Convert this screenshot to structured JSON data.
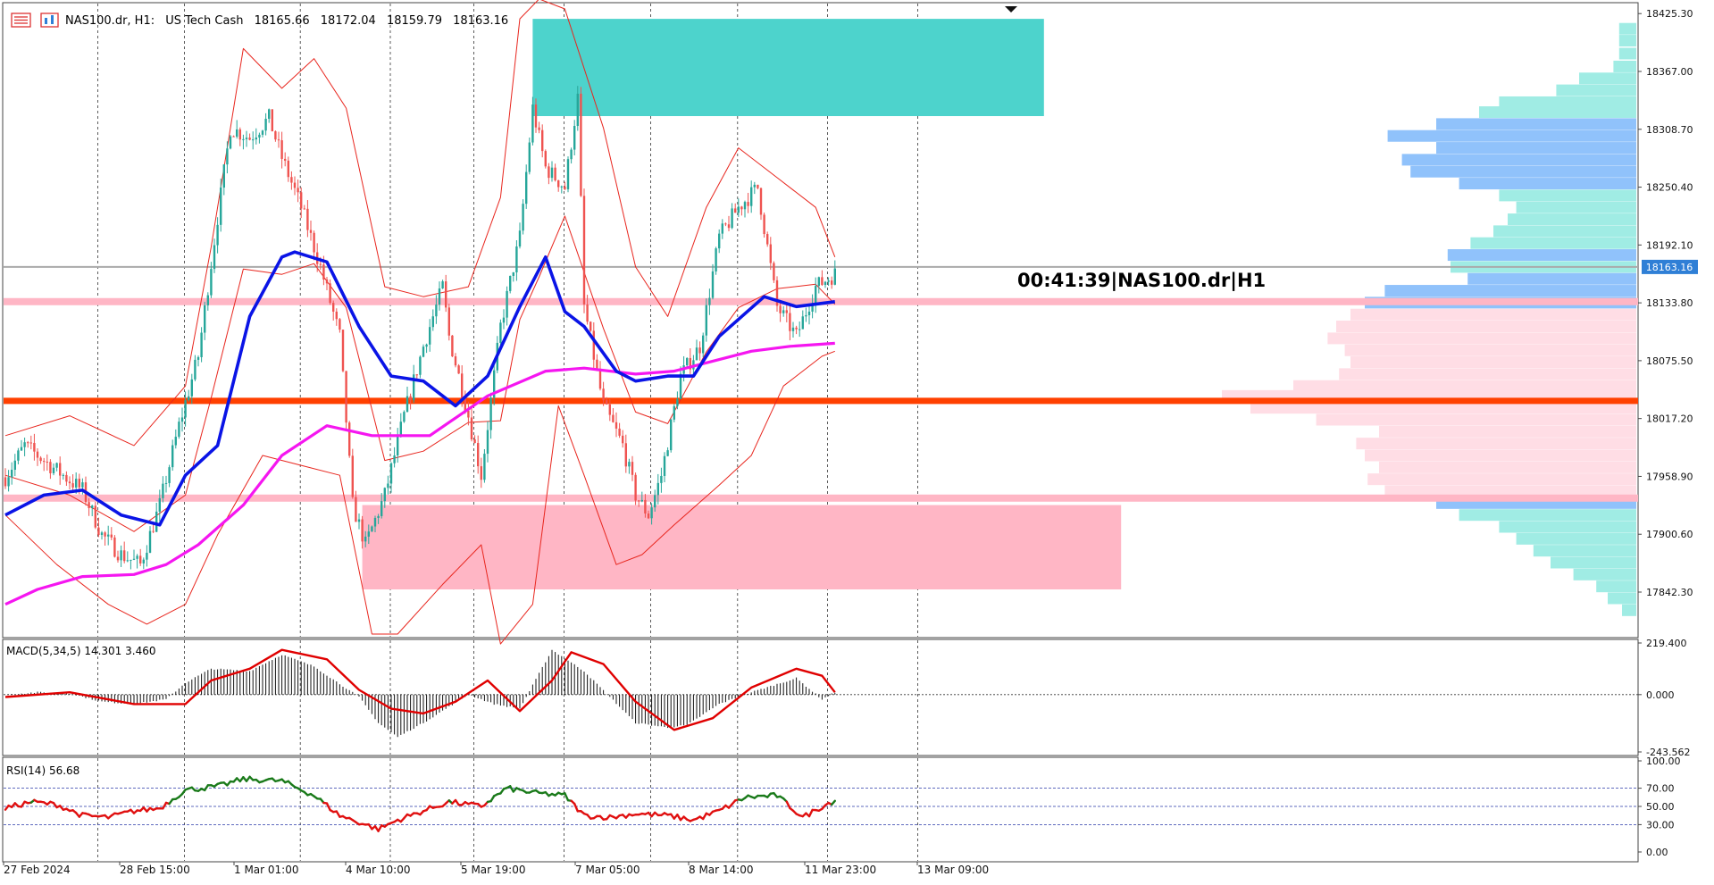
{
  "header": {
    "symbol_timeframe": "NAS100.dr, H1:",
    "description": "US Tech Cash",
    "open": "18165.66",
    "high": "18172.04",
    "low": "18159.79",
    "close": "18163.16"
  },
  "countdown_label": "00:41:39|NAS100.dr|H1",
  "current_price_tag": "18163.16",
  "colors": {
    "bull_candle": "#26a69a",
    "bear_candle": "#ef5350",
    "blue_ma": "#0a14e6",
    "magenta_ma": "#f516f0",
    "bollinger": "#e8261e",
    "support_line": "#ff4000",
    "zone_teal": "#4dd3cc",
    "zone_pink": "#ffb6c5",
    "profile_teal": "#a0ece4",
    "profile_blue": "#90c2fb",
    "profile_pink": "#ffdde5",
    "rsi_up": "#1a7a1a",
    "rsi_down": "#e01010"
  },
  "chart_data": [
    {
      "type": "candlestick",
      "title": "",
      "ylim": [
        17800,
        18430
      ],
      "y_ticks": [
        "18425.30",
        "18367.00",
        "18308.70",
        "18250.40",
        "18192.10",
        "18133.80",
        "18075.50",
        "18017.20",
        "17958.90",
        "17900.60",
        "17842.30"
      ],
      "x_labels": [
        "27 Feb 2024",
        "28 Feb 15:00",
        "1 Mar 01:00",
        "4 Mar 10:00",
        "5 Mar 19:00",
        "7 Mar 05:00",
        "8 Mar 14:00",
        "11 Mar 23:00",
        "13 Mar 09:00"
      ],
      "close_path": [
        [
          0,
          17958
        ],
        [
          6,
          17990
        ],
        [
          12,
          17975
        ],
        [
          18,
          17960
        ],
        [
          24,
          17945
        ],
        [
          30,
          17900
        ],
        [
          36,
          17880
        ],
        [
          42,
          17870
        ],
        [
          48,
          17930
        ],
        [
          54,
          18010
        ],
        [
          60,
          18080
        ],
        [
          66,
          18220
        ],
        [
          70,
          18310
        ],
        [
          76,
          18300
        ],
        [
          82,
          18320
        ],
        [
          86,
          18280
        ],
        [
          92,
          18230
        ],
        [
          98,
          18170
        ],
        [
          104,
          18100
        ],
        [
          108,
          17930
        ],
        [
          112,
          17890
        ],
        [
          118,
          17940
        ],
        [
          124,
          18020
        ],
        [
          130,
          18090
        ],
        [
          136,
          18150
        ],
        [
          138,
          18100
        ],
        [
          144,
          18020
        ],
        [
          148,
          17960
        ],
        [
          154,
          18110
        ],
        [
          160,
          18200
        ],
        [
          164,
          18330
        ],
        [
          168,
          18270
        ],
        [
          174,
          18250
        ],
        [
          178,
          18340
        ],
        [
          180,
          18130
        ],
        [
          186,
          18030
        ],
        [
          192,
          17990
        ],
        [
          196,
          17940
        ],
        [
          200,
          17920
        ],
        [
          204,
          17960
        ],
        [
          210,
          18060
        ],
        [
          216,
          18090
        ],
        [
          222,
          18200
        ],
        [
          228,
          18230
        ],
        [
          234,
          18250
        ],
        [
          240,
          18130
        ],
        [
          246,
          18100
        ],
        [
          252,
          18150
        ],
        [
          258,
          18163
        ]
      ],
      "blue_ma_path": [
        [
          0,
          17920
        ],
        [
          12,
          17940
        ],
        [
          24,
          17945
        ],
        [
          36,
          17920
        ],
        [
          48,
          17910
        ],
        [
          56,
          17960
        ],
        [
          66,
          17990
        ],
        [
          76,
          18120
        ],
        [
          86,
          18180
        ],
        [
          90,
          18185
        ],
        [
          100,
          18175
        ],
        [
          110,
          18110
        ],
        [
          120,
          18060
        ],
        [
          130,
          18055
        ],
        [
          140,
          18030
        ],
        [
          150,
          18060
        ],
        [
          160,
          18130
        ],
        [
          168,
          18180
        ],
        [
          174,
          18125
        ],
        [
          180,
          18110
        ],
        [
          190,
          18065
        ],
        [
          196,
          18055
        ],
        [
          206,
          18060
        ],
        [
          214,
          18060
        ],
        [
          222,
          18100
        ],
        [
          236,
          18140
        ],
        [
          246,
          18130
        ],
        [
          258,
          18135
        ]
      ],
      "magenta_ma_path": [
        [
          0,
          17830
        ],
        [
          10,
          17845
        ],
        [
          24,
          17858
        ],
        [
          40,
          17860
        ],
        [
          50,
          17870
        ],
        [
          60,
          17890
        ],
        [
          74,
          17930
        ],
        [
          86,
          17980
        ],
        [
          100,
          18010
        ],
        [
          114,
          18000
        ],
        [
          132,
          18000
        ],
        [
          150,
          18040
        ],
        [
          168,
          18065
        ],
        [
          180,
          18068
        ],
        [
          196,
          18062
        ],
        [
          208,
          18065
        ],
        [
          220,
          18075
        ],
        [
          232,
          18085
        ],
        [
          244,
          18090
        ],
        [
          258,
          18093
        ]
      ],
      "bb_upper_path": [
        [
          0,
          18000
        ],
        [
          20,
          18020
        ],
        [
          40,
          17990
        ],
        [
          56,
          18050
        ],
        [
          64,
          18190
        ],
        [
          74,
          18390
        ],
        [
          86,
          18350
        ],
        [
          96,
          18380
        ],
        [
          106,
          18330
        ],
        [
          118,
          18150
        ],
        [
          130,
          18140
        ],
        [
          144,
          18150
        ],
        [
          154,
          18240
        ],
        [
          160,
          18420
        ],
        [
          166,
          18440
        ],
        [
          174,
          18430
        ],
        [
          186,
          18310
        ],
        [
          196,
          18170
        ],
        [
          206,
          18120
        ],
        [
          218,
          18230
        ],
        [
          228,
          18290
        ],
        [
          240,
          18260
        ],
        [
          252,
          18230
        ],
        [
          258,
          18180
        ]
      ],
      "bb_lower_path": [
        [
          0,
          17920
        ],
        [
          16,
          17870
        ],
        [
          32,
          17830
        ],
        [
          44,
          17810
        ],
        [
          56,
          17830
        ],
        [
          66,
          17900
        ],
        [
          80,
          17980
        ],
        [
          92,
          17970
        ],
        [
          104,
          17960
        ],
        [
          114,
          17800
        ],
        [
          122,
          17800
        ],
        [
          136,
          17850
        ],
        [
          148,
          17890
        ],
        [
          154,
          17790
        ],
        [
          164,
          17830
        ],
        [
          172,
          18030
        ],
        [
          180,
          17960
        ],
        [
          190,
          17870
        ],
        [
          198,
          17880
        ],
        [
          208,
          17910
        ],
        [
          222,
          17950
        ],
        [
          232,
          17980
        ],
        [
          242,
          18050
        ],
        [
          254,
          18080
        ],
        [
          258,
          18085
        ]
      ],
      "support_level": 18035,
      "gray_level": 18170,
      "pink_lines": [
        18135,
        17937
      ],
      "zones": [
        {
          "x0": 164,
          "x1": 323,
          "y0": 18322,
          "y1": 18420,
          "color": "teal"
        },
        {
          "x0": 111,
          "x1": 347,
          "y0": 17845,
          "y1": 17930,
          "color": "pink"
        }
      ],
      "volume_profile": [
        {
          "y": 18410,
          "len": 0.06,
          "c": "teal"
        },
        {
          "y": 18398,
          "len": 0.06,
          "c": "teal"
        },
        {
          "y": 18385,
          "len": 0.06,
          "c": "teal"
        },
        {
          "y": 18372,
          "len": 0.08,
          "c": "teal"
        },
        {
          "y": 18360,
          "len": 0.2,
          "c": "teal"
        },
        {
          "y": 18348,
          "len": 0.28,
          "c": "teal"
        },
        {
          "y": 18336,
          "len": 0.48,
          "c": "teal"
        },
        {
          "y": 18326,
          "len": 0.55,
          "c": "teal"
        },
        {
          "y": 18314,
          "len": 0.7,
          "c": "blue"
        },
        {
          "y": 18302,
          "len": 0.87,
          "c": "blue"
        },
        {
          "y": 18290,
          "len": 0.7,
          "c": "blue"
        },
        {
          "y": 18278,
          "len": 0.82,
          "c": "blue"
        },
        {
          "y": 18266,
          "len": 0.79,
          "c": "blue"
        },
        {
          "y": 18254,
          "len": 0.62,
          "c": "blue"
        },
        {
          "y": 18242,
          "len": 0.48,
          "c": "teal"
        },
        {
          "y": 18230,
          "len": 0.42,
          "c": "teal"
        },
        {
          "y": 18218,
          "len": 0.45,
          "c": "teal"
        },
        {
          "y": 18206,
          "len": 0.5,
          "c": "teal"
        },
        {
          "y": 18194,
          "len": 0.58,
          "c": "teal"
        },
        {
          "y": 18182,
          "len": 0.66,
          "c": "blue"
        },
        {
          "y": 18170,
          "len": 0.65,
          "c": "teal"
        },
        {
          "y": 18158,
          "len": 0.59,
          "c": "blue"
        },
        {
          "y": 18146,
          "len": 0.88,
          "c": "blue"
        },
        {
          "y": 18134,
          "len": 0.95,
          "c": "blue"
        },
        {
          "y": 18122,
          "len": 1.0,
          "c": "pink"
        },
        {
          "y": 18110,
          "len": 1.05,
          "c": "pink"
        },
        {
          "y": 18098,
          "len": 1.08,
          "c": "pink"
        },
        {
          "y": 18086,
          "len": 1.02,
          "c": "pink"
        },
        {
          "y": 18074,
          "len": 1.0,
          "c": "pink"
        },
        {
          "y": 18062,
          "len": 1.04,
          "c": "pink"
        },
        {
          "y": 18050,
          "len": 1.2,
          "c": "pink"
        },
        {
          "y": 18040,
          "len": 1.45,
          "c": "pink"
        },
        {
          "y": 18028,
          "len": 1.35,
          "c": "pink"
        },
        {
          "y": 18016,
          "len": 1.12,
          "c": "pink"
        },
        {
          "y": 18004,
          "len": 0.9,
          "c": "pink"
        },
        {
          "y": 17992,
          "len": 0.98,
          "c": "pink"
        },
        {
          "y": 17980,
          "len": 0.95,
          "c": "pink"
        },
        {
          "y": 17968,
          "len": 0.9,
          "c": "pink"
        },
        {
          "y": 17956,
          "len": 0.94,
          "c": "pink"
        },
        {
          "y": 17944,
          "len": 0.88,
          "c": "pink"
        },
        {
          "y": 17932,
          "len": 0.7,
          "c": "blue"
        },
        {
          "y": 17920,
          "len": 0.62,
          "c": "teal"
        },
        {
          "y": 17908,
          "len": 0.48,
          "c": "teal"
        },
        {
          "y": 17896,
          "len": 0.42,
          "c": "teal"
        },
        {
          "y": 17884,
          "len": 0.36,
          "c": "teal"
        },
        {
          "y": 17872,
          "len": 0.3,
          "c": "teal"
        },
        {
          "y": 17860,
          "len": 0.22,
          "c": "teal"
        },
        {
          "y": 17848,
          "len": 0.14,
          "c": "teal"
        },
        {
          "y": 17836,
          "len": 0.1,
          "c": "teal"
        },
        {
          "y": 17824,
          "len": 0.05,
          "c": "teal"
        }
      ]
    },
    {
      "type": "histogram",
      "title": "MACD(5,34,5) 14.301 3.460",
      "ylim": [
        -243.562,
        219.4
      ],
      "y_ticks": [
        "219.400",
        "0.000",
        "-243.562"
      ],
      "macd_path": [
        [
          0,
          0
        ],
        [
          10,
          10
        ],
        [
          20,
          5
        ],
        [
          30,
          -30
        ],
        [
          40,
          -40
        ],
        [
          50,
          -20
        ],
        [
          56,
          50
        ],
        [
          64,
          110
        ],
        [
          76,
          100
        ],
        [
          86,
          170
        ],
        [
          96,
          120
        ],
        [
          110,
          -10
        ],
        [
          116,
          -120
        ],
        [
          122,
          -180
        ],
        [
          130,
          -120
        ],
        [
          144,
          0
        ],
        [
          152,
          -40
        ],
        [
          160,
          -60
        ],
        [
          170,
          190
        ],
        [
          180,
          100
        ],
        [
          196,
          -120
        ],
        [
          206,
          -140
        ],
        [
          212,
          -130
        ],
        [
          222,
          -40
        ],
        [
          232,
          10
        ],
        [
          246,
          70
        ],
        [
          254,
          -20
        ],
        [
          258,
          10
        ]
      ],
      "signal_path": [
        [
          0,
          -10
        ],
        [
          20,
          10
        ],
        [
          40,
          -40
        ],
        [
          56,
          -40
        ],
        [
          64,
          60
        ],
        [
          76,
          110
        ],
        [
          86,
          190
        ],
        [
          100,
          150
        ],
        [
          110,
          20
        ],
        [
          120,
          -60
        ],
        [
          130,
          -80
        ],
        [
          140,
          -30
        ],
        [
          150,
          60
        ],
        [
          160,
          -70
        ],
        [
          170,
          60
        ],
        [
          176,
          180
        ],
        [
          186,
          130
        ],
        [
          196,
          -30
        ],
        [
          208,
          -150
        ],
        [
          220,
          -100
        ],
        [
          232,
          30
        ],
        [
          246,
          110
        ],
        [
          254,
          80
        ],
        [
          258,
          10
        ]
      ]
    },
    {
      "type": "line",
      "title": "RSI(14) 56.68",
      "ylim": [
        0,
        100
      ],
      "y_ticks": [
        "100.00",
        "70.00",
        "50.00",
        "30.00",
        "0.00"
      ],
      "levels": [
        70,
        50,
        30
      ],
      "rsi_path": [
        [
          0,
          48
        ],
        [
          8,
          55
        ],
        [
          16,
          52
        ],
        [
          24,
          40
        ],
        [
          32,
          38
        ],
        [
          40,
          45
        ],
        [
          48,
          48
        ],
        [
          56,
          68
        ],
        [
          66,
          72
        ],
        [
          74,
          80
        ],
        [
          86,
          78
        ],
        [
          96,
          62
        ],
        [
          104,
          40
        ],
        [
          112,
          30
        ],
        [
          116,
          25
        ],
        [
          122,
          35
        ],
        [
          130,
          45
        ],
        [
          138,
          55
        ],
        [
          148,
          50
        ],
        [
          156,
          70
        ],
        [
          164,
          65
        ],
        [
          174,
          62
        ],
        [
          180,
          40
        ],
        [
          188,
          38
        ],
        [
          196,
          42
        ],
        [
          206,
          40
        ],
        [
          214,
          35
        ],
        [
          222,
          45
        ],
        [
          230,
          60
        ],
        [
          240,
          62
        ],
        [
          248,
          38
        ],
        [
          254,
          50
        ],
        [
          258,
          56.68
        ]
      ]
    }
  ]
}
